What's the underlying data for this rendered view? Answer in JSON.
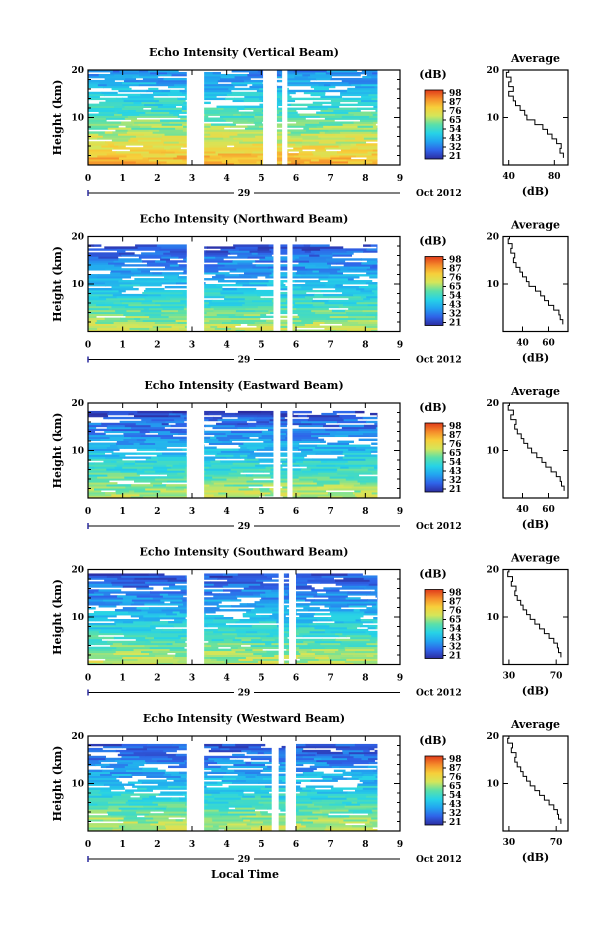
{
  "figure": {
    "colorbar_unit": "(dB)",
    "time_label": "Local Time",
    "colorbar_ticks": [
      "98",
      "87",
      "76",
      "65",
      "54",
      "43",
      "32",
      "21"
    ],
    "colors": {
      "scale": [
        "#2c2ca0",
        "#2f62e8",
        "#22a4f0",
        "#27d3e6",
        "#5be0a8",
        "#d4e65a",
        "#f7cf3a",
        "#f58b2a",
        "#e03a1a"
      ],
      "axis": "#000000",
      "line": "#000000"
    }
  },
  "chart_data": [
    {
      "type": "heatmap",
      "title": "Echo Intensity (Vertical Beam)",
      "ylabel": "Height (km)",
      "ylim": [
        0,
        20
      ],
      "yticks": [
        10,
        20
      ],
      "xlim": [
        0,
        9
      ],
      "xticks": [
        "0",
        "1",
        "2",
        "3",
        "4",
        "5",
        "6",
        "7",
        "8",
        "9"
      ],
      "date_day": "29",
      "date_label": "Oct 2012",
      "data_gaps": [
        [
          2.85,
          3.35
        ],
        [
          5.05,
          5.45
        ],
        [
          5.6,
          5.75
        ]
      ],
      "data_end": 8.35,
      "top_height": 20,
      "mean_base": 85,
      "mean_top": 36,
      "profile": {
        "title": "Average",
        "xlabel": "(dB)",
        "xlim": [
          35,
          92
        ],
        "xticks": [
          "40",
          "80"
        ],
        "heights": [
          2,
          3,
          4,
          5,
          6,
          7,
          8,
          9,
          10,
          11,
          12,
          13,
          14,
          15,
          16,
          17,
          18,
          19,
          20
        ],
        "values": [
          88,
          85,
          86,
          82,
          78,
          74,
          70,
          63,
          56,
          54,
          50,
          46,
          44,
          40,
          44,
          40,
          42,
          38,
          40
        ]
      }
    },
    {
      "type": "heatmap",
      "title": "Echo Intensity (Northward Beam)",
      "ylabel": "Height (km)",
      "ylim": [
        0,
        20
      ],
      "yticks": [
        10,
        20
      ],
      "xlim": [
        0,
        9
      ],
      "xticks": [
        "0",
        "1",
        "2",
        "3",
        "4",
        "5",
        "6",
        "7",
        "8",
        "9"
      ],
      "date_day": "29",
      "date_label": "Oct 2012",
      "data_gaps": [
        [
          2.85,
          3.35
        ],
        [
          5.35,
          5.55
        ],
        [
          5.75,
          5.9
        ]
      ],
      "data_end": 8.35,
      "top_height": 18.5,
      "mean_base": 70,
      "mean_top": 27,
      "profile": {
        "title": "Average",
        "xlabel": "(dB)",
        "xlim": [
          25,
          75
        ],
        "xticks": [
          "40",
          "60"
        ],
        "heights": [
          2,
          3,
          4,
          5,
          6,
          7,
          8,
          9,
          10,
          11,
          12,
          13,
          14,
          15,
          16,
          17,
          18,
          19,
          20
        ],
        "values": [
          71,
          69,
          68,
          64,
          60,
          57,
          54,
          50,
          45,
          43,
          40,
          38,
          35,
          33,
          34,
          31,
          32,
          29,
          30
        ]
      }
    },
    {
      "type": "heatmap",
      "title": "Echo Intensity (Eastward Beam)",
      "ylabel": "Height (km)",
      "ylim": [
        0,
        20
      ],
      "yticks": [
        10,
        20
      ],
      "xlim": [
        0,
        9
      ],
      "xticks": [
        "0",
        "1",
        "2",
        "3",
        "4",
        "5",
        "6",
        "7",
        "8",
        "9"
      ],
      "date_day": "29",
      "date_label": "Oct 2012",
      "data_gaps": [
        [
          2.85,
          3.35
        ],
        [
          5.35,
          5.55
        ],
        [
          5.75,
          5.9
        ]
      ],
      "data_end": 8.35,
      "top_height": 18.3,
      "mean_base": 70,
      "mean_top": 27,
      "profile": {
        "title": "Average",
        "xlabel": "(dB)",
        "xlim": [
          25,
          75
        ],
        "xticks": [
          "40",
          "60"
        ],
        "heights": [
          2,
          3,
          4,
          5,
          6,
          7,
          8,
          9,
          10,
          11,
          12,
          13,
          14,
          15,
          16,
          17,
          18,
          19,
          20
        ],
        "values": [
          72,
          70,
          69,
          66,
          62,
          58,
          55,
          51,
          47,
          44,
          41,
          39,
          36,
          34,
          35,
          31,
          33,
          29,
          30
        ]
      }
    },
    {
      "type": "heatmap",
      "title": "Echo Intensity (Southward Beam)",
      "ylabel": "Height (km)",
      "ylim": [
        0,
        20
      ],
      "yticks": [
        10,
        20
      ],
      "xlim": [
        0,
        9
      ],
      "xticks": [
        "0",
        "1",
        "2",
        "3",
        "4",
        "5",
        "6",
        "7",
        "8",
        "9"
      ],
      "date_day": "29",
      "date_label": "Oct 2012",
      "data_gaps": [
        [
          2.85,
          3.35
        ],
        [
          5.5,
          5.65
        ],
        [
          5.8,
          6.0
        ]
      ],
      "data_end": 8.35,
      "top_height": 19,
      "mean_base": 70,
      "mean_top": 28,
      "profile": {
        "title": "Average",
        "xlabel": "(dB)",
        "xlim": [
          25,
          80
        ],
        "xticks": [
          "30",
          "70"
        ],
        "heights": [
          2,
          3,
          4,
          5,
          6,
          7,
          8,
          9,
          10,
          11,
          12,
          13,
          14,
          15,
          16,
          17,
          18,
          19,
          20
        ],
        "values": [
          74,
          72,
          71,
          68,
          64,
          60,
          56,
          52,
          48,
          45,
          42,
          40,
          37,
          35,
          36,
          32,
          33,
          29,
          30
        ]
      }
    },
    {
      "type": "heatmap",
      "title": "Echo Intensity (Westward Beam)",
      "ylabel": "Height (km)",
      "ylim": [
        0,
        20
      ],
      "yticks": [
        10,
        20
      ],
      "xlim": [
        0,
        9
      ],
      "xticks": [
        "0",
        "1",
        "2",
        "3",
        "4",
        "5",
        "6",
        "7",
        "8",
        "9"
      ],
      "date_day": "29",
      "date_label": "Oct 2012",
      "data_gaps": [
        [
          2.85,
          3.35
        ],
        [
          5.3,
          5.5
        ],
        [
          5.7,
          6.0
        ]
      ],
      "data_end": 8.35,
      "top_height": 18.5,
      "mean_base": 70,
      "mean_top": 28,
      "profile": {
        "title": "Average",
        "xlabel": "(dB)",
        "xlim": [
          25,
          80
        ],
        "xticks": [
          "30",
          "70"
        ],
        "heights": [
          2,
          3,
          4,
          5,
          6,
          7,
          8,
          9,
          10,
          11,
          12,
          13,
          14,
          15,
          16,
          17,
          18,
          19,
          20
        ],
        "values": [
          74,
          72,
          71,
          68,
          64,
          60,
          56,
          52,
          48,
          45,
          42,
          40,
          37,
          35,
          36,
          32,
          33,
          29,
          30
        ]
      }
    }
  ]
}
